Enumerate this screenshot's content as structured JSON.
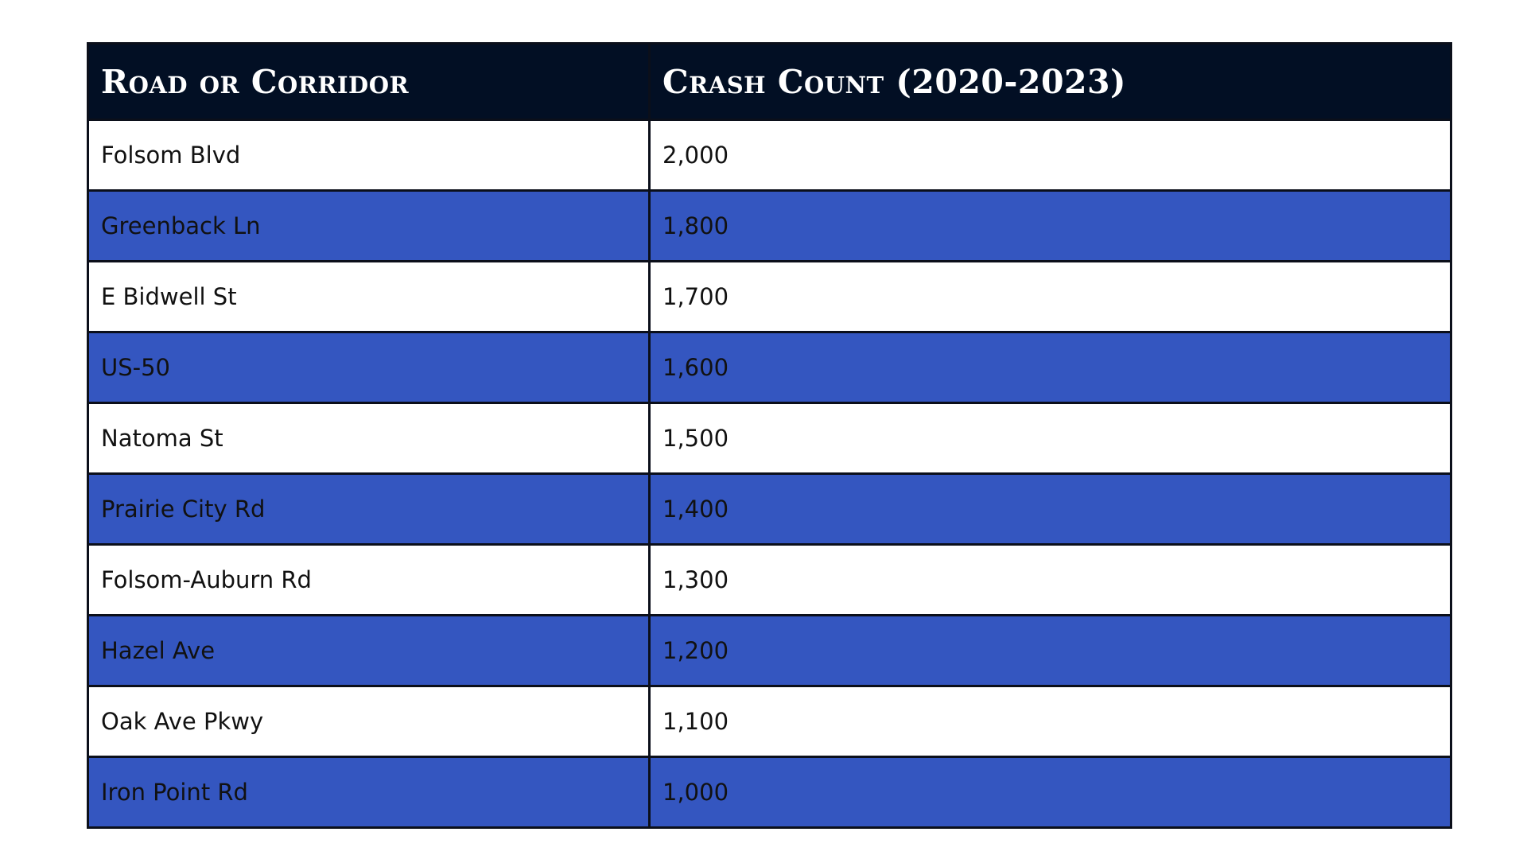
{
  "chart_data": {
    "type": "table",
    "columns": [
      "Road or Corridor",
      "Crash Count (2020-2023)"
    ],
    "rows": [
      [
        "Folsom Blvd",
        "2,000"
      ],
      [
        "Greenback Ln",
        "1,800"
      ],
      [
        "E Bidwell St",
        "1,700"
      ],
      [
        "US-50",
        "1,600"
      ],
      [
        "Natoma St",
        "1,500"
      ],
      [
        "Prairie City Rd",
        "1,400"
      ],
      [
        "Folsom-Auburn Rd",
        "1,300"
      ],
      [
        "Hazel Ave",
        "1,200"
      ],
      [
        "Oak Ave Pkwy",
        "1,100"
      ],
      [
        "Iron Point Rd",
        "1,000"
      ]
    ],
    "header_color": "#020f24",
    "stripe_color": "#3456c0",
    "row_color": "#ffffff"
  }
}
